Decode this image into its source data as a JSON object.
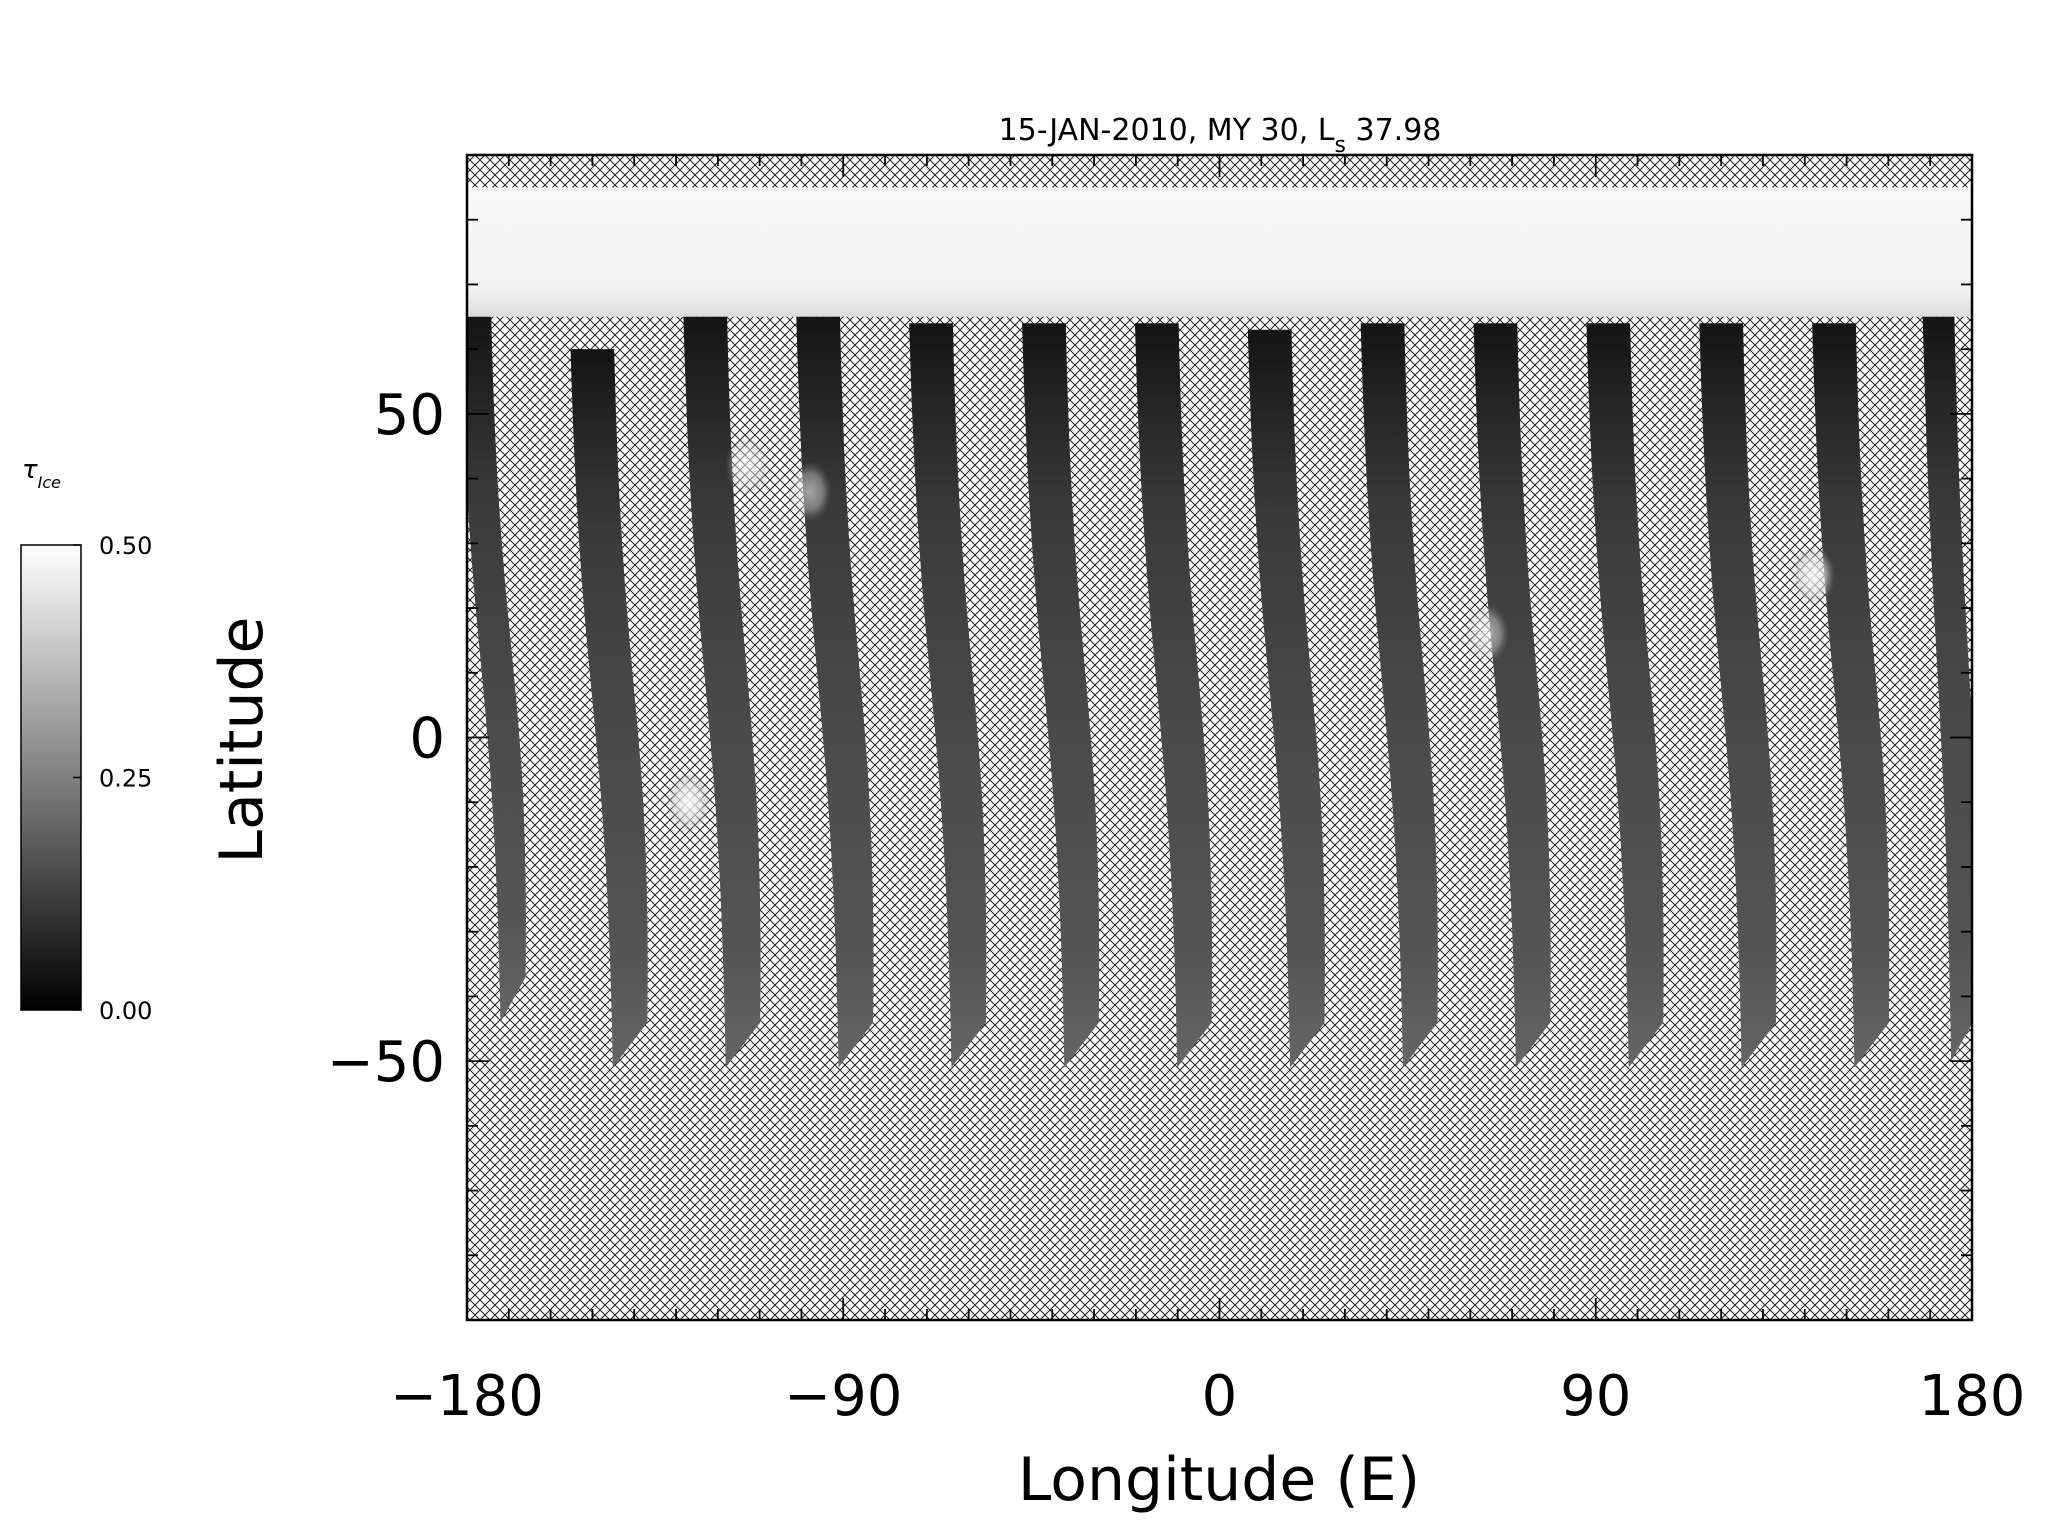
{
  "chart_data": {
    "type": "heatmap",
    "title": {
      "main": "15-JAN-2010, MY 30,  L",
      "subscript": "s",
      "value": " 37.98"
    },
    "xlabel": "Longitude (E)",
    "ylabel": "Latitude",
    "xlim": [
      -180,
      180
    ],
    "ylim": [
      -90,
      90
    ],
    "x_ticks": [
      {
        "value": -180,
        "label": "−180"
      },
      {
        "value": -90,
        "label": "−90"
      },
      {
        "value": 0,
        "label": "0"
      },
      {
        "value": 90,
        "label": "90"
      },
      {
        "value": 180,
        "label": "180"
      }
    ],
    "y_ticks": [
      {
        "value": -50,
        "label": "−50"
      },
      {
        "value": 0,
        "label": "0"
      },
      {
        "value": 50,
        "label": "50"
      }
    ],
    "x_minor_step": 10,
    "y_minor_step": 10,
    "grid": false,
    "no_data": "cross-hatch",
    "colorbar": {
      "label": "τ",
      "label_subscript": "Ice",
      "range": [
        0.0,
        0.5
      ],
      "ticks": [
        {
          "value": 0.0,
          "label": "0.00"
        },
        {
          "value": 0.25,
          "label": "0.25"
        },
        {
          "value": 0.5,
          "label": "0.50"
        }
      ],
      "colormap": "grayscale",
      "placement": "left"
    },
    "polar_cap": {
      "lat_bottom": 65,
      "lat_top": 85,
      "tau": 0.48
    },
    "swaths": [
      {
        "lon_top": -178,
        "lat_top": 65,
        "lon_bottom": -169,
        "lat_bottom": -44,
        "width": 8
      },
      {
        "lon_top": -150,
        "lat_top": 60,
        "lon_bottom": -141,
        "lat_bottom": -51,
        "width": 11
      },
      {
        "lon_top": -123,
        "lat_top": 65,
        "lon_bottom": -114,
        "lat_bottom": -51,
        "width": 11
      },
      {
        "lon_top": -96,
        "lat_top": 65,
        "lon_bottom": -87,
        "lat_bottom": -51,
        "width": 11
      },
      {
        "lon_top": -69,
        "lat_top": 64,
        "lon_bottom": -60,
        "lat_bottom": -51,
        "width": 11
      },
      {
        "lon_top": -42,
        "lat_top": 64,
        "lon_bottom": -33,
        "lat_bottom": -51,
        "width": 11
      },
      {
        "lon_top": -15,
        "lat_top": 64,
        "lon_bottom": -6,
        "lat_bottom": -51,
        "width": 11
      },
      {
        "lon_top": 12,
        "lat_top": 63,
        "lon_bottom": 21,
        "lat_bottom": -51,
        "width": 11
      },
      {
        "lon_top": 39,
        "lat_top": 64,
        "lon_bottom": 48,
        "lat_bottom": -51,
        "width": 11
      },
      {
        "lon_top": 66,
        "lat_top": 64,
        "lon_bottom": 75,
        "lat_bottom": -51,
        "width": 11
      },
      {
        "lon_top": 93,
        "lat_top": 64,
        "lon_bottom": 102,
        "lat_bottom": -51,
        "width": 11
      },
      {
        "lon_top": 120,
        "lat_top": 64,
        "lon_bottom": 129,
        "lat_bottom": -51,
        "width": 11
      },
      {
        "lon_top": 147,
        "lat_top": 64,
        "lon_bottom": 156,
        "lat_bottom": -51,
        "width": 11
      },
      {
        "lon_top": 172,
        "lat_top": 65,
        "lon_bottom": 178,
        "lat_bottom": -50,
        "width": 8
      }
    ],
    "bright_spots": [
      {
        "lon": -127,
        "lat": -10,
        "tau": 0.45
      },
      {
        "lon": 142,
        "lat": 25,
        "tau": 0.42
      },
      {
        "lon": -113,
        "lat": 42,
        "tau": 0.3
      },
      {
        "lon": -98,
        "lat": 38,
        "tau": 0.28
      },
      {
        "lon": 64,
        "lat": 16,
        "tau": 0.3
      }
    ]
  }
}
